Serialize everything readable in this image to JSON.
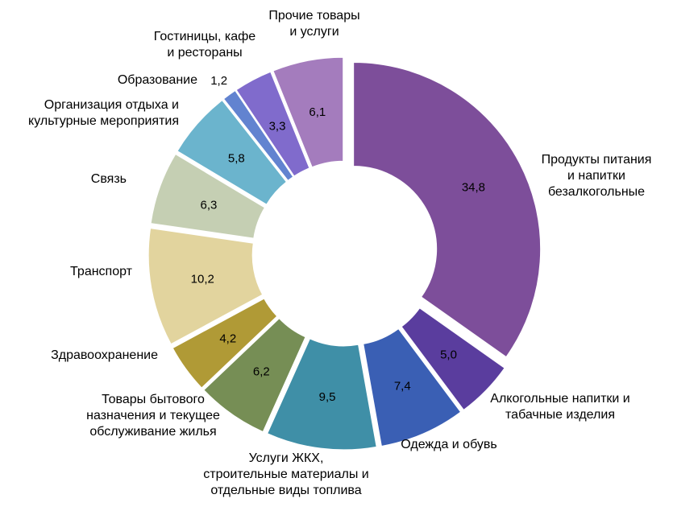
{
  "chart_data": {
    "type": "pie",
    "variant": "donut-exploded",
    "title": "",
    "decimal_separator": ",",
    "categories": [
      "Продукты питания и напитки безалкогольные",
      "Алкогольные напитки и табачные изделия",
      "Одежда и обувь",
      "Услуги ЖКХ, строительные материалы и отдельные виды топлива",
      "Товары бытового назначения и текущее обслуживание жилья",
      "Здравоохранение",
      "Транспорт",
      "Связь",
      "Организация отдыха и культурные мероприятия",
      "Образование",
      "Гостиницы, кафе и рестораны",
      "Прочие товары и услуги"
    ],
    "label_lines": [
      [
        "Продукты питания",
        "и напитки",
        "безалкогольные"
      ],
      [
        "Алкогольные напитки и",
        "табачные изделия"
      ],
      [
        "Одежда и обувь"
      ],
      [
        "Услуги ЖКХ,",
        "строительные материалы и",
        "отдельные виды топлива"
      ],
      [
        "Товары бытового",
        "назначения и текущее",
        "обслуживание жилья"
      ],
      [
        "Здравоохранение"
      ],
      [
        "Транспорт"
      ],
      [
        "Связь"
      ],
      [
        "Организация отдыха и",
        "культурные мероприятия"
      ],
      [
        "Образование"
      ],
      [
        "Гостиницы, кафе",
        "и рестораны"
      ],
      [
        "Прочие товары",
        "и услуги"
      ]
    ],
    "values": [
      34.8,
      5.0,
      7.4,
      9.5,
      6.2,
      4.2,
      10.2,
      6.3,
      5.8,
      1.2,
      3.3,
      6.1
    ],
    "value_labels": [
      "34,8",
      "5,0",
      "7,4",
      "9,5",
      "6,2",
      "4,2",
      "10,2",
      "6,3",
      "5,8",
      "1,2",
      "3,3",
      "6,1"
    ],
    "colors": [
      "#7d4e9a",
      "#5a3d9e",
      "#3a5fb4",
      "#3f8fa7",
      "#768e55",
      "#b09a36",
      "#e2d49e",
      "#c5cfb3",
      "#6bb4cd",
      "#6283d0",
      "#806bcc",
      "#a47cbd"
    ],
    "legend": "none"
  }
}
